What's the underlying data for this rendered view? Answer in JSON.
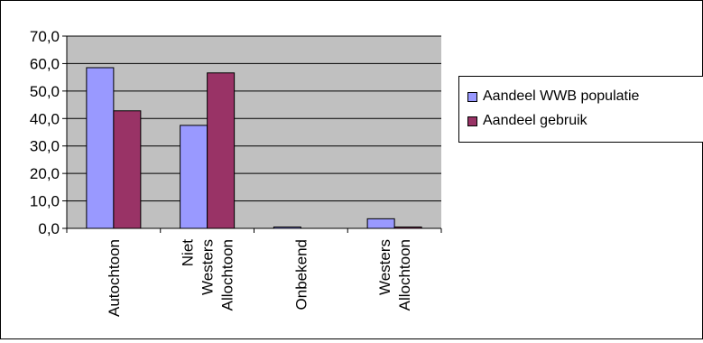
{
  "chart_data": {
    "type": "bar",
    "categories": [
      [
        "Autochtoon"
      ],
      [
        "Niet",
        "Westers",
        "Allochtoon"
      ],
      [
        "Onbekend"
      ],
      [
        "Westers",
        "Allochtoon"
      ]
    ],
    "series": [
      {
        "name": "Aandeel WWB populatie",
        "values": [
          58.5,
          37.5,
          0.5,
          3.5
        ]
      },
      {
        "name": "Aandeel gebruik",
        "values": [
          42.8,
          56.6,
          0.0,
          0.5
        ]
      }
    ],
    "ylim": [
      0,
      70
    ],
    "yticks": [
      "0,0",
      "10,0",
      "20,0",
      "30,0",
      "40,0",
      "50,0",
      "60,0",
      "70,0"
    ],
    "grid": true,
    "legend_position": "right",
    "colors": {
      "series": [
        "#9999ff",
        "#993366"
      ],
      "plot_background": "#c0c0c0",
      "grid": "#000000"
    }
  }
}
